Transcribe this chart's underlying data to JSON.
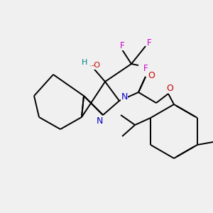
{
  "bg_color": "#f0f0f0",
  "atom_colors": {
    "C": "#000000",
    "N": "#0000cc",
    "O": "#cc0000",
    "F": "#cc00cc",
    "H": "#008080"
  },
  "bond_color": "#000000",
  "bond_width": 1.4,
  "dbl_sep": 0.12
}
